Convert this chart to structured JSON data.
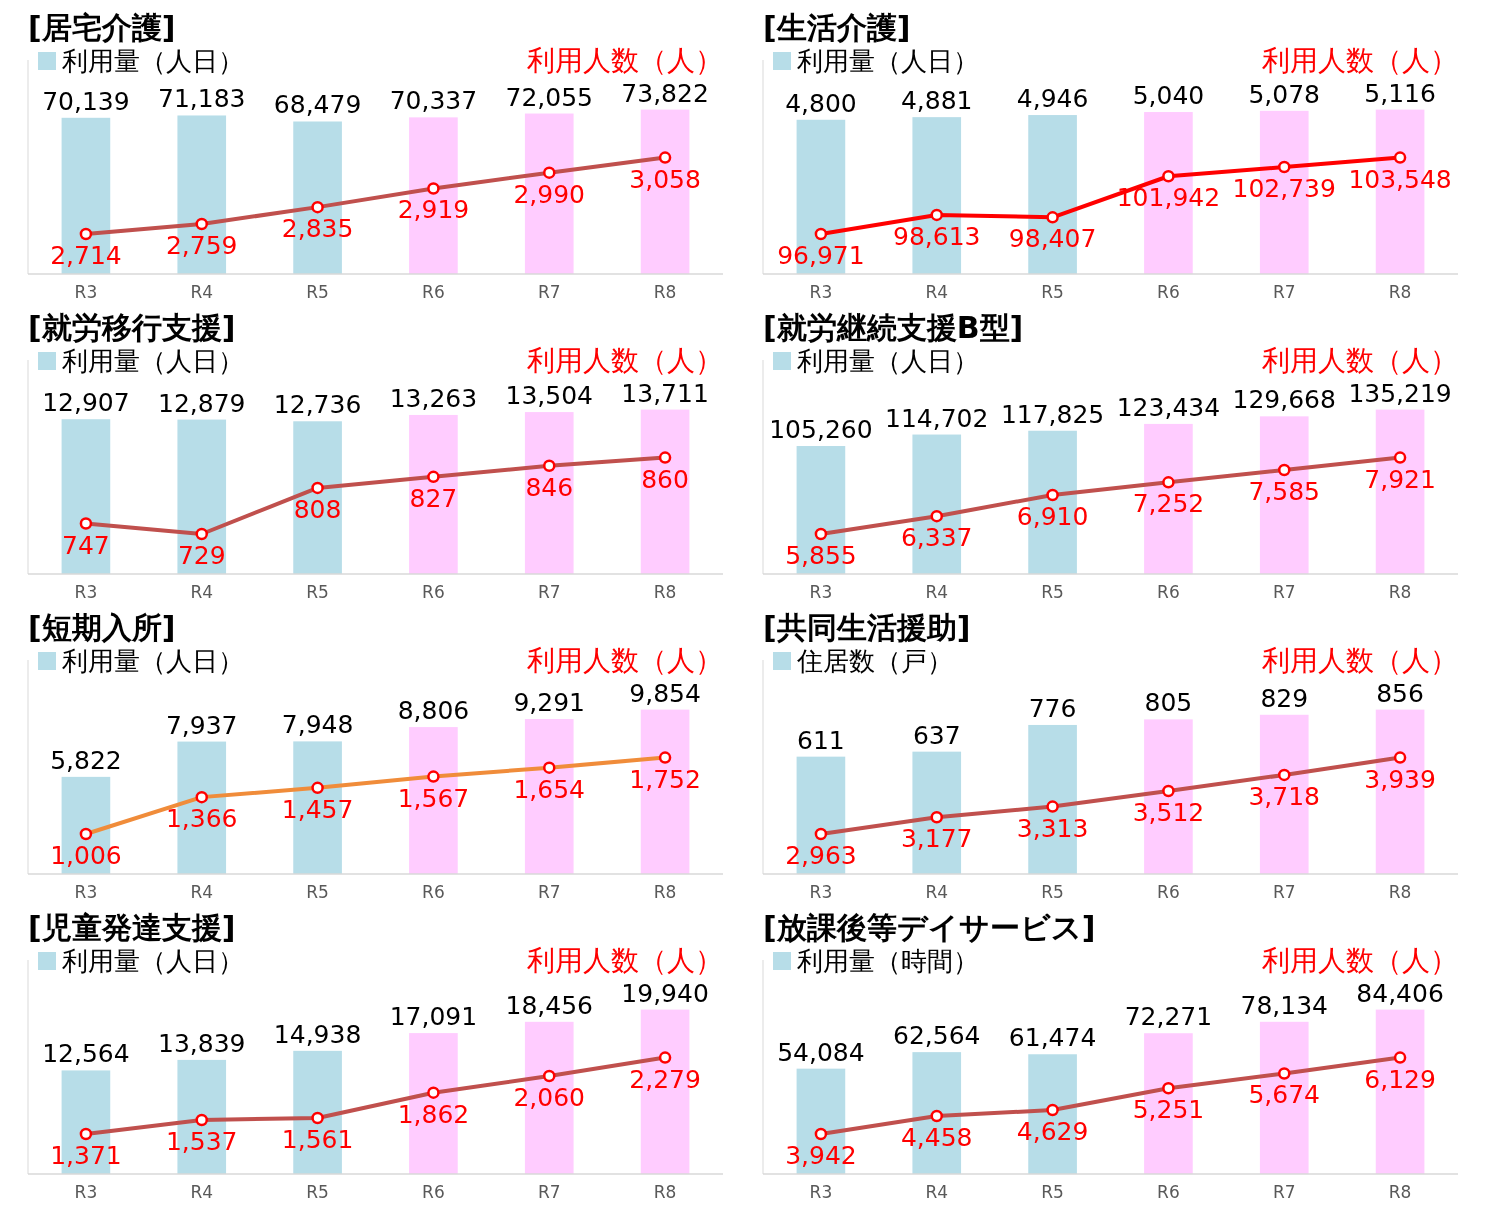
{
  "chart_data": [
    {
      "type": "bar",
      "title": "[居宅介護]",
      "categories": [
        "R3",
        "R4",
        "R5",
        "R6",
        "R7",
        "R8"
      ],
      "marker": "circle",
      "series": [
        {
          "name": "利用量（人日）",
          "colors": [
            "#b7dde8",
            "#b7dde8",
            "#b7dde8",
            "#ffccff",
            "#ffccff",
            "#ffccff"
          ],
          "values": [
            70139,
            71183,
            68479,
            70337,
            72055,
            73822
          ],
          "value_labels": [
            "70,139",
            "71,183",
            "68,479",
            "70,337",
            "72,055",
            "73,822"
          ]
        },
        {
          "name": "利用人数（人）",
          "type": "line",
          "axis": "y2",
          "color": "#c0504d",
          "values": [
            2714,
            2759,
            2835,
            2919,
            2990,
            3058
          ],
          "value_labels": [
            "2,714",
            "2,759",
            "2,835",
            "2,919",
            "2,990",
            "3,058"
          ]
        }
      ]
    },
    {
      "type": "bar",
      "title": "[生活介護]",
      "categories": [
        "R3",
        "R4",
        "R5",
        "R6",
        "R7",
        "R8"
      ],
      "marker": "circle",
      "series": [
        {
          "name": "利用量（人日）",
          "colors": [
            "#b7dde8",
            "#b7dde8",
            "#b7dde8",
            "#ffccff",
            "#ffccff",
            "#ffccff"
          ],
          "values": [
            4800,
            4881,
            4946,
            5040,
            5078,
            5116
          ],
          "value_labels": [
            "4,800",
            "4,881",
            "4,946",
            "5,040",
            "5,078",
            "5,116"
          ]
        },
        {
          "name": "利用人数（人）",
          "type": "line",
          "axis": "y2",
          "color": "#ff0000",
          "values": [
            96971,
            98613,
            98407,
            101942,
            102739,
            103548
          ],
          "value_labels": [
            "96,971",
            "98,613",
            "98,407",
            "101,942",
            "102,739",
            "103,548"
          ]
        }
      ]
    },
    {
      "type": "bar",
      "title": "[就労移行支援]",
      "categories": [
        "R3",
        "R4",
        "R5",
        "R6",
        "R7",
        "R8"
      ],
      "marker": "circle",
      "series": [
        {
          "name": "利用量（人日）",
          "colors": [
            "#b7dde8",
            "#b7dde8",
            "#b7dde8",
            "#ffccff",
            "#ffccff",
            "#ffccff"
          ],
          "values": [
            12907,
            12879,
            12736,
            13263,
            13504,
            13711
          ],
          "value_labels": [
            "12,907",
            "12,879",
            "12,736",
            "13,263",
            "13,504",
            "13,711"
          ]
        },
        {
          "name": "利用人数（人）",
          "type": "line",
          "axis": "y2",
          "color": "#c0504d",
          "values": [
            747,
            729,
            808,
            827,
            846,
            860
          ],
          "value_labels": [
            "747",
            "729",
            "808",
            "827",
            "846",
            "860"
          ]
        }
      ]
    },
    {
      "type": "bar",
      "title": "[就労継続支援B型]",
      "categories": [
        "R3",
        "R4",
        "R5",
        "R6",
        "R7",
        "R8"
      ],
      "marker": "circle",
      "series": [
        {
          "name": "利用量（人日）",
          "colors": [
            "#b7dde8",
            "#b7dde8",
            "#b7dde8",
            "#ffccff",
            "#ffccff",
            "#ffccff"
          ],
          "values": [
            105260,
            114702,
            117825,
            123434,
            129668,
            135219
          ],
          "value_labels": [
            "105,260",
            "114,702",
            "117,825",
            "123,434",
            "129,668",
            "135,219"
          ]
        },
        {
          "name": "利用人数（人）",
          "type": "line",
          "axis": "y2",
          "color": "#c0504d",
          "values": [
            5855,
            6337,
            6910,
            7252,
            7585,
            7921
          ],
          "value_labels": [
            "5,855",
            "6,337",
            "6,910",
            "7,252",
            "7,585",
            "7,921"
          ]
        }
      ]
    },
    {
      "type": "bar",
      "title": "[短期入所]",
      "categories": [
        "R3",
        "R4",
        "R5",
        "R6",
        "R7",
        "R8"
      ],
      "marker": "circle",
      "series": [
        {
          "name": "利用量（人日）",
          "colors": [
            "#b7dde8",
            "#b7dde8",
            "#b7dde8",
            "#ffccff",
            "#ffccff",
            "#ffccff"
          ],
          "values": [
            5822,
            7937,
            7948,
            8806,
            9291,
            9854
          ],
          "value_labels": [
            "5,822",
            "7,937",
            "7,948",
            "8,806",
            "9,291",
            "9,854"
          ]
        },
        {
          "name": "利用人数（人）",
          "type": "line",
          "axis": "y2",
          "color": "#f08c3a",
          "values": [
            1006,
            1366,
            1457,
            1567,
            1654,
            1752
          ],
          "value_labels": [
            "1,006",
            "1,366",
            "1,457",
            "1,567",
            "1,654",
            "1,752"
          ]
        }
      ]
    },
    {
      "type": "bar",
      "title": "[共同生活援助]",
      "categories": [
        "R3",
        "R4",
        "R5",
        "R6",
        "R7",
        "R8"
      ],
      "marker": "circle",
      "series": [
        {
          "name": "住居数（戸）",
          "colors": [
            "#b7dde8",
            "#b7dde8",
            "#b7dde8",
            "#ffccff",
            "#ffccff",
            "#ffccff"
          ],
          "values": [
            611,
            637,
            776,
            805,
            829,
            856
          ],
          "value_labels": [
            "611",
            "637",
            "776",
            "805",
            "829",
            "856"
          ]
        },
        {
          "name": "利用人数（人）",
          "type": "line",
          "axis": "y2",
          "color": "#c0504d",
          "values": [
            2963,
            3177,
            3313,
            3512,
            3718,
            3939
          ],
          "value_labels": [
            "2,963",
            "3,177",
            "3,313",
            "3,512",
            "3,718",
            "3,939"
          ]
        }
      ]
    },
    {
      "type": "bar",
      "title": "[児童発達支援]",
      "categories": [
        "R3",
        "R4",
        "R5",
        "R6",
        "R7",
        "R8"
      ],
      "marker": "circle",
      "series": [
        {
          "name": "利用量（人日）",
          "colors": [
            "#b7dde8",
            "#b7dde8",
            "#b7dde8",
            "#ffccff",
            "#ffccff",
            "#ffccff"
          ],
          "values": [
            12564,
            13839,
            14938,
            17091,
            18456,
            19940
          ],
          "value_labels": [
            "12,564",
            "13,839",
            "14,938",
            "17,091",
            "18,456",
            "19,940"
          ]
        },
        {
          "name": "利用人数（人）",
          "type": "line",
          "axis": "y2",
          "color": "#c0504d",
          "values": [
            1371,
            1537,
            1561,
            1862,
            2060,
            2279
          ],
          "value_labels": [
            "1,371",
            "1,537",
            "1,561",
            "1,862",
            "2,060",
            "2,279"
          ]
        }
      ]
    },
    {
      "type": "bar",
      "title": "[放課後等デイサービス]",
      "categories": [
        "R3",
        "R4",
        "R5",
        "R6",
        "R7",
        "R8"
      ],
      "marker": "circle",
      "series": [
        {
          "name": "利用量（時間）",
          "colors": [
            "#b7dde8",
            "#b7dde8",
            "#b7dde8",
            "#ffccff",
            "#ffccff",
            "#ffccff"
          ],
          "values": [
            54084,
            62564,
            61474,
            72271,
            78134,
            84406
          ],
          "value_labels": [
            "54,084",
            "62,564",
            "61,474",
            "72,271",
            "78,134",
            "84,406"
          ]
        },
        {
          "name": "利用人数（人）",
          "type": "line",
          "axis": "y2",
          "color": "#c0504d",
          "values": [
            3942,
            4458,
            4629,
            5251,
            5674,
            6129
          ],
          "value_labels": [
            "3,942",
            "4,458",
            "4,629",
            "5,251",
            "5,674",
            "6,129"
          ]
        }
      ]
    }
  ]
}
